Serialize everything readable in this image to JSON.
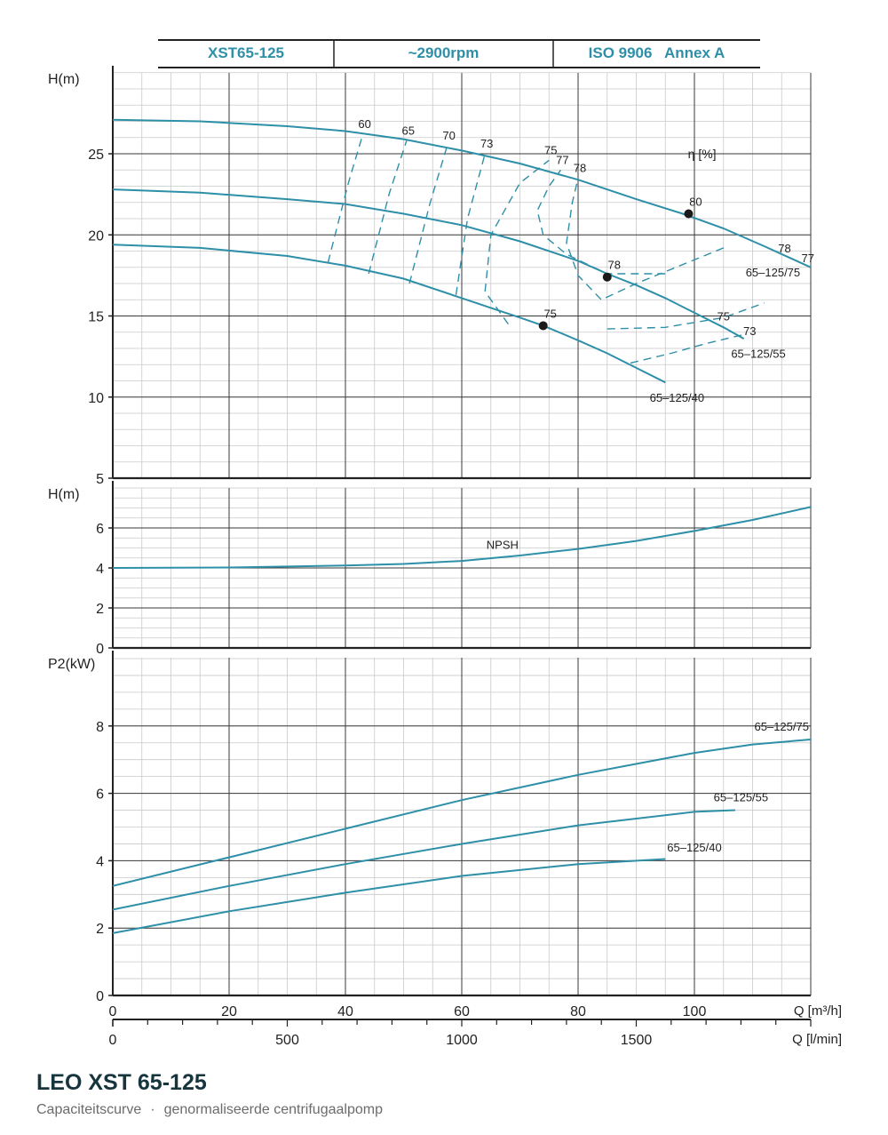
{
  "header": {
    "model": "XST65-125",
    "speed": "~2900rpm",
    "standard": "ISO 9906   Annex A"
  },
  "footer": {
    "title": "LEO XST 65-125",
    "subtitle_left": "Capaciteitscurve",
    "separator": "·",
    "subtitle_right": "genormaliseerde centrifugaalpomp"
  },
  "chart_data": [
    {
      "type": "line",
      "ylabel": "H(m)",
      "xlabel": "Q [m³/h]",
      "xlim": [
        0,
        120
      ],
      "ylim": [
        5,
        30
      ],
      "yticks": [
        5,
        10,
        15,
        20,
        25
      ],
      "xticks": [
        0,
        20,
        40,
        60,
        80,
        100
      ],
      "x2label": "Q [l/min]",
      "x2ticks": [
        0,
        500,
        1000,
        1500
      ],
      "grid": true,
      "series": [
        {
          "name": "65-125/75",
          "x": [
            0,
            15,
            30,
            40,
            50,
            60,
            70,
            80,
            90,
            98,
            105,
            112,
            120
          ],
          "y": [
            27.1,
            27.0,
            26.7,
            26.4,
            25.9,
            25.2,
            24.4,
            23.4,
            22.2,
            21.3,
            20.4,
            19.3,
            18.0
          ]
        },
        {
          "name": "65-125/55",
          "x": [
            0,
            15,
            30,
            40,
            50,
            60,
            70,
            80,
            85,
            90,
            95,
            100,
            105,
            108.5
          ],
          "y": [
            22.8,
            22.6,
            22.2,
            21.9,
            21.3,
            20.6,
            19.6,
            18.4,
            17.6,
            16.9,
            16.1,
            15.2,
            14.3,
            13.6
          ]
        },
        {
          "name": "65-125/40",
          "x": [
            0,
            15,
            30,
            40,
            50,
            60,
            65,
            70,
            74,
            80,
            85,
            90,
            95
          ],
          "y": [
            19.4,
            19.2,
            18.7,
            18.1,
            17.3,
            16.1,
            15.5,
            14.9,
            14.4,
            13.5,
            12.7,
            11.8,
            10.9
          ]
        }
      ],
      "efficiency_label": "η [%]",
      "efficiency_lines": [
        {
          "label": "60",
          "x": [
            37,
            40.5,
            43
          ],
          "y": [
            18.3,
            23.2,
            26.2
          ]
        },
        {
          "label": "65",
          "x": [
            44,
            47.5,
            50.5
          ],
          "y": [
            17.6,
            22.5,
            25.8
          ]
        },
        {
          "label": "70",
          "x": [
            51,
            54.5,
            57.5
          ],
          "y": [
            17.0,
            21.9,
            25.5
          ]
        },
        {
          "label": "73",
          "x": [
            59,
            61,
            64
          ],
          "y": [
            16.3,
            21.0,
            25.0
          ]
        },
        {
          "label": "75",
          "x": [
            68,
            64,
            65,
            70,
            75
          ],
          "y": [
            14.5,
            16.5,
            20.0,
            23.2,
            24.6
          ]
        },
        {
          "label": "77",
          "x": [
            95,
            85,
            78,
            74,
            73,
            75,
            77
          ],
          "y": [
            17.6,
            17.6,
            18.8,
            20.0,
            21.5,
            23.0,
            24.0
          ]
        },
        {
          "label": "78",
          "x": [
            105,
            90,
            84,
            80,
            78,
            79,
            80
          ],
          "y": [
            19.2,
            17.0,
            16.0,
            17.5,
            19.5,
            22.0,
            23.5
          ]
        }
      ],
      "efficiency_extensions": [
        {
          "x": [
            85,
            95,
            105,
            112
          ],
          "y": [
            14.2,
            14.3,
            14.9,
            15.8
          ]
        },
        {
          "x": [
            89,
            96,
            102,
            109
          ],
          "y": [
            12.1,
            12.7,
            13.3,
            13.9
          ]
        }
      ],
      "points": [
        {
          "label": "80",
          "x": 99,
          "y": 21.3
        },
        {
          "label": "78",
          "x": 85,
          "y": 17.4
        },
        {
          "label": "75",
          "x": 74,
          "y": 14.4
        }
      ],
      "side_labels": [
        {
          "text": "78",
          "x": 115.5,
          "y": 19.2
        },
        {
          "text": "77",
          "x": 119.5,
          "y": 18.6
        },
        {
          "text": "65–125/75",
          "x": 113.5,
          "y": 17.7
        },
        {
          "text": "75",
          "x": 105,
          "y": 15.0
        },
        {
          "text": "73",
          "x": 109.5,
          "y": 14.1
        },
        {
          "text": "65–125/55",
          "x": 111,
          "y": 12.7
        },
        {
          "text": "65–125/40",
          "x": 97,
          "y": 10.0
        }
      ]
    },
    {
      "type": "line",
      "ylabel": "H(m)",
      "xlim": [
        0,
        120
      ],
      "ylim": [
        0,
        8
      ],
      "yticks": [
        0,
        2,
        4,
        6
      ],
      "grid": true,
      "series": [
        {
          "name": "NPSH",
          "x": [
            0,
            20,
            40,
            50,
            60,
            70,
            80,
            90,
            100,
            110,
            120
          ],
          "y": [
            4.0,
            4.02,
            4.12,
            4.2,
            4.35,
            4.62,
            4.95,
            5.35,
            5.85,
            6.4,
            7.05
          ]
        }
      ]
    },
    {
      "type": "line",
      "ylabel": "P2(kW)",
      "xlim": [
        0,
        120
      ],
      "ylim": [
        0,
        10
      ],
      "yticks": [
        0,
        2,
        4,
        6,
        8
      ],
      "grid": true,
      "series": [
        {
          "name": "65-125/75",
          "x": [
            0,
            20,
            40,
            60,
            80,
            100,
            110,
            120
          ],
          "y": [
            3.25,
            4.1,
            4.95,
            5.8,
            6.55,
            7.2,
            7.45,
            7.6
          ]
        },
        {
          "name": "65-125/55",
          "x": [
            0,
            20,
            40,
            60,
            80,
            100,
            107
          ],
          "y": [
            2.55,
            3.25,
            3.9,
            4.5,
            5.05,
            5.45,
            5.5
          ]
        },
        {
          "name": "65-125/40",
          "x": [
            0,
            20,
            40,
            60,
            80,
            95
          ],
          "y": [
            1.85,
            2.5,
            3.05,
            3.55,
            3.9,
            4.05
          ]
        }
      ]
    }
  ]
}
